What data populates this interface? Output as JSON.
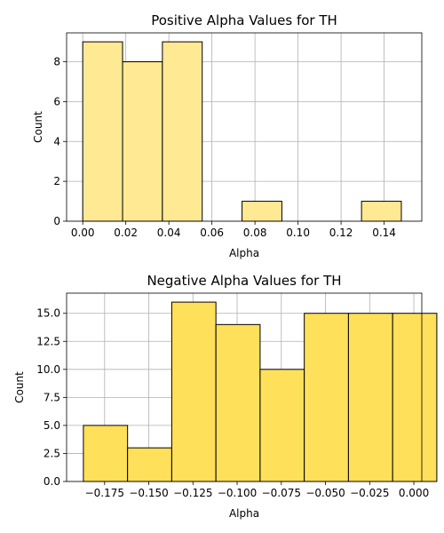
{
  "chart_data": [
    {
      "type": "bar",
      "title": "Positive Alpha Values for TH",
      "xlabel": "Alpha",
      "ylabel": "Count",
      "bar_color": "#ffe993",
      "xlim": [
        -0.0075,
        0.1575
      ],
      "ylim": [
        0,
        9.45
      ],
      "xticks": [
        0.0,
        0.02,
        0.04,
        0.06,
        0.08,
        0.1,
        0.12,
        0.14
      ],
      "xtick_labels": [
        "0.00",
        "0.02",
        "0.04",
        "0.06",
        "0.08",
        "0.10",
        "0.12",
        "0.14"
      ],
      "yticks": [
        0,
        2,
        4,
        6,
        8
      ],
      "ytick_labels": [
        "0",
        "2",
        "4",
        "6",
        "8"
      ],
      "bins": [
        {
          "x0": 0.0,
          "x1": 0.0185,
          "value": 9
        },
        {
          "x0": 0.0185,
          "x1": 0.037,
          "value": 8
        },
        {
          "x0": 0.037,
          "x1": 0.0555,
          "value": 9
        },
        {
          "x0": 0.0555,
          "x1": 0.074,
          "value": 0
        },
        {
          "x0": 0.074,
          "x1": 0.0925,
          "value": 1
        },
        {
          "x0": 0.0925,
          "x1": 0.111,
          "value": 0
        },
        {
          "x0": 0.111,
          "x1": 0.1295,
          "value": 0
        },
        {
          "x0": 0.1295,
          "x1": 0.148,
          "value": 1
        }
      ],
      "grid": true
    },
    {
      "type": "bar",
      "title": "Negative Alpha Values for TH",
      "xlabel": "Alpha",
      "ylabel": "Count",
      "bar_color": "#ffe05a",
      "xlim": [
        -0.1965,
        0.0045
      ],
      "ylim": [
        0,
        16.8
      ],
      "xticks": [
        -0.175,
        -0.15,
        -0.125,
        -0.1,
        -0.075,
        -0.05,
        -0.025,
        0.0
      ],
      "xtick_labels": [
        "−0.175",
        "−0.150",
        "−0.125",
        "−0.100",
        "−0.075",
        "−0.050",
        "−0.025",
        "0.000"
      ],
      "yticks": [
        0.0,
        2.5,
        5.0,
        7.5,
        10.0,
        12.5,
        15.0
      ],
      "ytick_labels": [
        "0.0",
        "2.5",
        "5.0",
        "7.5",
        "10.0",
        "12.5",
        "15.0"
      ],
      "bins": [
        {
          "x0": -0.187,
          "x1": -0.162,
          "value": 5
        },
        {
          "x0": -0.162,
          "x1": -0.137,
          "value": 3
        },
        {
          "x0": -0.137,
          "x1": -0.112,
          "value": 16
        },
        {
          "x0": -0.112,
          "x1": -0.087,
          "value": 14
        },
        {
          "x0": -0.087,
          "x1": -0.062,
          "value": 10
        },
        {
          "x0": -0.062,
          "x1": -0.037,
          "value": 15
        },
        {
          "x0": -0.037,
          "x1": -0.012,
          "value": 15
        },
        {
          "x0": -0.012,
          "x1": 0.013,
          "value": 15
        }
      ],
      "grid": true
    }
  ]
}
